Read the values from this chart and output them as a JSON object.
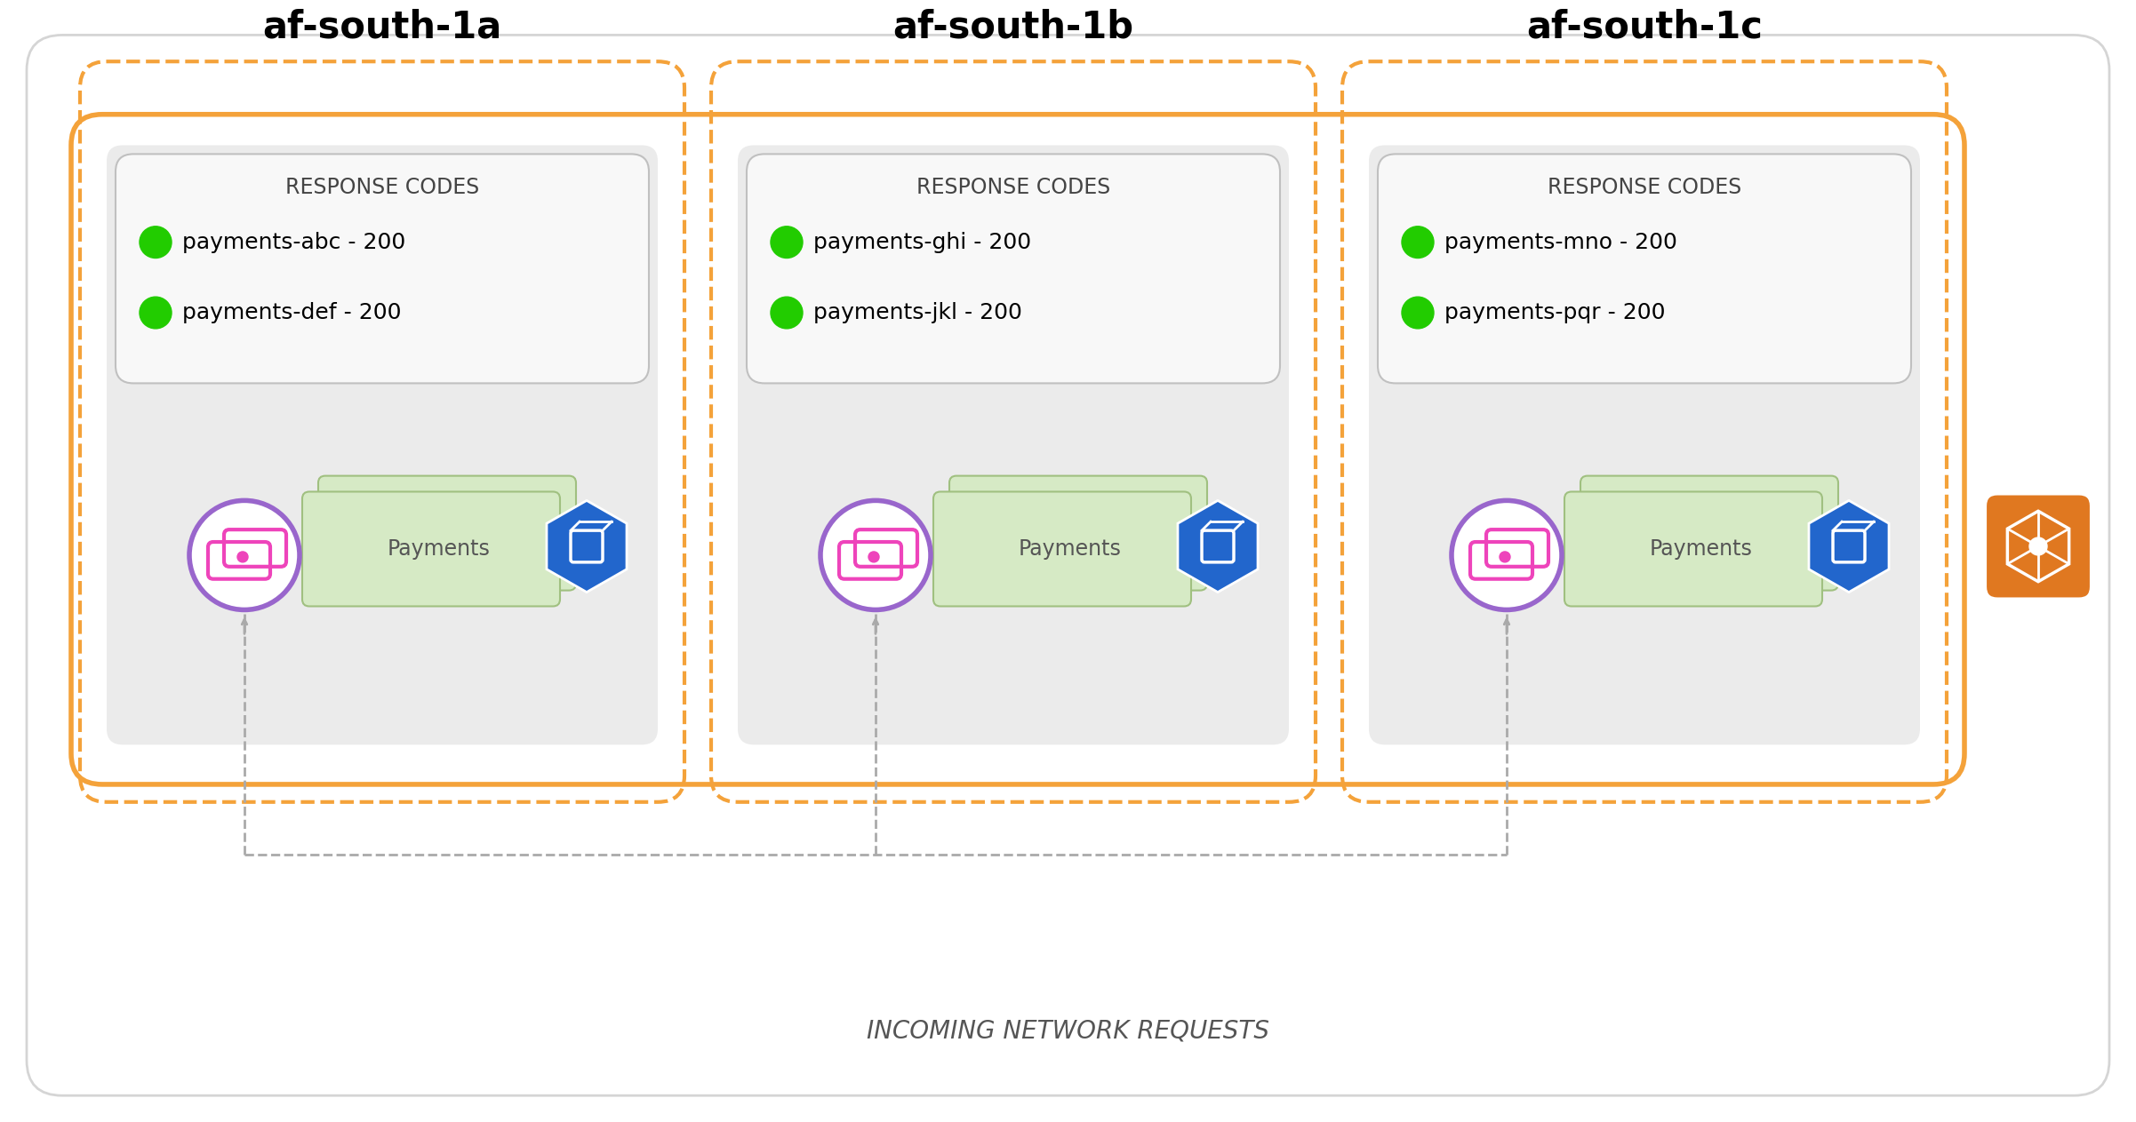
{
  "background_color": "#ffffff",
  "outer_bg_color": "#f9f9f9",
  "outer_border_color": "#D0D0D0",
  "az_solid_border_color": "#F4A23A",
  "az_dashed_color": "#F4A23A",
  "inner_bg_color": "#EBEBEB",
  "response_box_facecolor": "#F8F8F8",
  "response_box_border": "#C0C0C0",
  "green_dot_color": "#22CC00",
  "payments_box_light": "#D6EAC5",
  "payments_box_border": "#A0C080",
  "az_labels": [
    "af-south-1a",
    "af-south-1b",
    "af-south-1c"
  ],
  "response_codes": [
    [
      "payments-abc - 200",
      "payments-def - 200"
    ],
    [
      "payments-ghi - 200",
      "payments-jkl - 200"
    ],
    [
      "payments-mno - 200",
      "payments-pqr - 200"
    ]
  ],
  "bottom_label": "INCOMING NETWORK REQUESTS",
  "k8s_icon_color": "#E07820",
  "arrow_color": "#AAAAAA",
  "pod_circle_color": "#9966CC",
  "pod_icon_color": "#EE44BB",
  "blue_hex_color": "#2266CC"
}
